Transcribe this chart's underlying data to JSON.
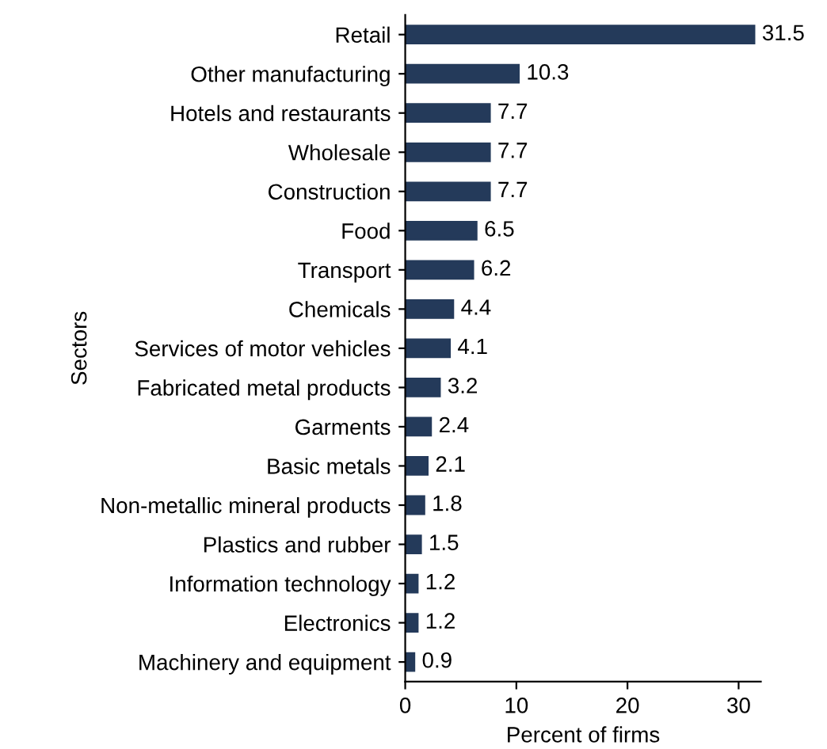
{
  "chart_data": {
    "type": "bar",
    "orientation": "horizontal",
    "categories": [
      "Retail",
      "Other manufacturing",
      "Hotels and restaurants",
      "Wholesale",
      "Construction",
      "Food",
      "Transport",
      "Chemicals",
      "Services of motor vehicles",
      "Fabricated metal products",
      "Garments",
      "Basic metals",
      "Non-metallic mineral products",
      "Plastics and rubber",
      "Information technology",
      "Electronics",
      "Machinery and equipment"
    ],
    "values": [
      31.5,
      10.3,
      7.7,
      7.7,
      7.7,
      6.5,
      6.2,
      4.4,
      4.1,
      3.2,
      2.4,
      2.1,
      1.8,
      1.5,
      1.2,
      1.2,
      0.9
    ],
    "color": "#243a5a",
    "data_labels": true,
    "xlim": [
      0,
      32
    ],
    "xticks": [
      0,
      10,
      20,
      30
    ],
    "xlabel": "Percent of firms",
    "ylabel": "Sectors",
    "grid": false
  }
}
